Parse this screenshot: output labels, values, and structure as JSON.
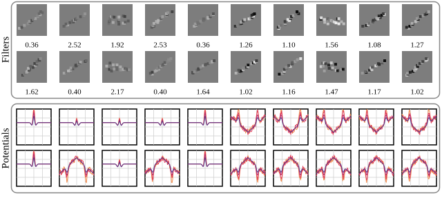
{
  "labels": {
    "filters": "Filters",
    "potentials": "Potentials"
  },
  "filters": {
    "rows": [
      [
        "0.36",
        "2.52",
        "1.92",
        "2.53",
        "0.36",
        "1.26",
        "1.10",
        "1.56",
        "1.08",
        "1.27"
      ],
      [
        "1.62",
        "0.40",
        "2.17",
        "0.40",
        "1.64",
        "1.02",
        "1.16",
        "1.47",
        "1.17",
        "1.02"
      ]
    ]
  }
}
